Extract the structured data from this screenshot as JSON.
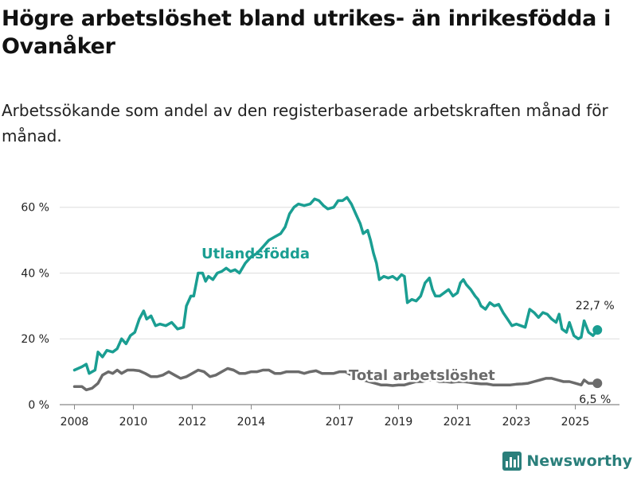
{
  "header": {
    "title": "Högre arbetslöshet bland utrikes- än inrikesfödda i Ovanåker",
    "subtitle": "Arbetssökande som andel av den registerbaserade arbetskraften månad för månad."
  },
  "brand": {
    "name": "Newsworthy",
    "icon": "bar-chart-logo-icon",
    "color": "#2a7f7b"
  },
  "chart_data": {
    "type": "line",
    "title": "Högre arbetslöshet bland utrikes- än inrikesfödda i Ovanåker",
    "xlabel": "",
    "ylabel": "",
    "xlim": [
      2007.5,
      2026.5
    ],
    "ylim": [
      0,
      65
    ],
    "yticks": [
      0,
      20,
      40,
      60
    ],
    "ytick_labels": [
      "0 %",
      "20 %",
      "40 %",
      "60 %"
    ],
    "xticks": [
      2008,
      2010,
      2012,
      2014,
      2017,
      2019,
      2021,
      2023,
      2025
    ],
    "xtick_labels": [
      "2008",
      "2010",
      "2012",
      "2014",
      "2017",
      "2019",
      "2021",
      "2023",
      "2025"
    ],
    "grid": "horizontal",
    "series": [
      {
        "name": "Utlandsfödda",
        "label": "Utlandsfödda",
        "color": "#1a9e92",
        "end_label": "22,7 %",
        "points": [
          [
            2008.0,
            10.5
          ],
          [
            2008.25,
            11.5
          ],
          [
            2008.4,
            12.3
          ],
          [
            2008.5,
            9.5
          ],
          [
            2008.7,
            10.5
          ],
          [
            2008.8,
            16
          ],
          [
            2008.95,
            14.5
          ],
          [
            2009.1,
            16.5
          ],
          [
            2009.3,
            16
          ],
          [
            2009.45,
            17
          ],
          [
            2009.6,
            20
          ],
          [
            2009.75,
            18.5
          ],
          [
            2009.9,
            21
          ],
          [
            2010.05,
            22
          ],
          [
            2010.2,
            26
          ],
          [
            2010.35,
            28.5
          ],
          [
            2010.45,
            26
          ],
          [
            2010.6,
            27
          ],
          [
            2010.75,
            24
          ],
          [
            2010.9,
            24.5
          ],
          [
            2011.1,
            24
          ],
          [
            2011.3,
            25
          ],
          [
            2011.5,
            23
          ],
          [
            2011.7,
            23.5
          ],
          [
            2011.8,
            30
          ],
          [
            2011.95,
            33
          ],
          [
            2012.05,
            33
          ],
          [
            2012.2,
            40
          ],
          [
            2012.35,
            40
          ],
          [
            2012.45,
            37.5
          ],
          [
            2012.55,
            39
          ],
          [
            2012.7,
            38
          ],
          [
            2012.85,
            40
          ],
          [
            2013.0,
            40.5
          ],
          [
            2013.15,
            41.5
          ],
          [
            2013.3,
            40.5
          ],
          [
            2013.45,
            41
          ],
          [
            2013.6,
            40
          ],
          [
            2013.8,
            43
          ],
          [
            2014.0,
            45
          ],
          [
            2014.2,
            46
          ],
          [
            2014.4,
            48
          ],
          [
            2014.6,
            50
          ],
          [
            2014.8,
            51
          ],
          [
            2015.0,
            52
          ],
          [
            2015.15,
            54
          ],
          [
            2015.3,
            58
          ],
          [
            2015.45,
            60
          ],
          [
            2015.6,
            61
          ],
          [
            2015.8,
            60.5
          ],
          [
            2016.0,
            61
          ],
          [
            2016.15,
            62.5
          ],
          [
            2016.3,
            62
          ],
          [
            2016.45,
            60.5
          ],
          [
            2016.6,
            59.5
          ],
          [
            2016.8,
            60
          ],
          [
            2016.95,
            62
          ],
          [
            2017.1,
            62
          ],
          [
            2017.25,
            63
          ],
          [
            2017.4,
            61
          ],
          [
            2017.55,
            58
          ],
          [
            2017.7,
            55
          ],
          [
            2017.8,
            52
          ],
          [
            2017.95,
            53
          ],
          [
            2018.05,
            50
          ],
          [
            2018.15,
            46
          ],
          [
            2018.25,
            43
          ],
          [
            2018.35,
            38
          ],
          [
            2018.5,
            39
          ],
          [
            2018.65,
            38.5
          ],
          [
            2018.8,
            39
          ],
          [
            2018.95,
            38
          ],
          [
            2019.1,
            39.5
          ],
          [
            2019.2,
            39
          ],
          [
            2019.3,
            31
          ],
          [
            2019.45,
            32
          ],
          [
            2019.6,
            31.5
          ],
          [
            2019.75,
            33
          ],
          [
            2019.9,
            37
          ],
          [
            2020.05,
            38.5
          ],
          [
            2020.15,
            35
          ],
          [
            2020.25,
            33
          ],
          [
            2020.4,
            33
          ],
          [
            2020.55,
            34
          ],
          [
            2020.7,
            35
          ],
          [
            2020.85,
            33
          ],
          [
            2021.0,
            34
          ],
          [
            2021.1,
            37
          ],
          [
            2021.2,
            38
          ],
          [
            2021.3,
            36.5
          ],
          [
            2021.45,
            35
          ],
          [
            2021.6,
            33
          ],
          [
            2021.7,
            32
          ],
          [
            2021.8,
            30
          ],
          [
            2021.95,
            29
          ],
          [
            2022.1,
            31
          ],
          [
            2022.25,
            30
          ],
          [
            2022.4,
            30.5
          ],
          [
            2022.55,
            28
          ],
          [
            2022.7,
            26
          ],
          [
            2022.85,
            24
          ],
          [
            2023.0,
            24.5
          ],
          [
            2023.15,
            24
          ],
          [
            2023.3,
            23.5
          ],
          [
            2023.45,
            29
          ],
          [
            2023.6,
            28
          ],
          [
            2023.75,
            26.5
          ],
          [
            2023.9,
            28
          ],
          [
            2024.05,
            27.5
          ],
          [
            2024.2,
            26
          ],
          [
            2024.35,
            25
          ],
          [
            2024.45,
            27.5
          ],
          [
            2024.55,
            23
          ],
          [
            2024.7,
            22
          ],
          [
            2024.8,
            25
          ],
          [
            2024.95,
            21
          ],
          [
            2025.1,
            20
          ],
          [
            2025.2,
            20.5
          ],
          [
            2025.3,
            25.5
          ],
          [
            2025.45,
            22
          ],
          [
            2025.6,
            21
          ],
          [
            2025.75,
            22.7
          ]
        ]
      },
      {
        "name": "Total arbetslöshet",
        "label": "Total arbetslöshet",
        "color": "#6b6b6b",
        "end_label": "6,5 %",
        "points": [
          [
            2008.0,
            5.5
          ],
          [
            2008.25,
            5.5
          ],
          [
            2008.4,
            4.5
          ],
          [
            2008.6,
            5
          ],
          [
            2008.8,
            6.5
          ],
          [
            2008.95,
            9
          ],
          [
            2009.15,
            10
          ],
          [
            2009.3,
            9.5
          ],
          [
            2009.45,
            10.5
          ],
          [
            2009.6,
            9.5
          ],
          [
            2009.8,
            10.5
          ],
          [
            2010.0,
            10.5
          ],
          [
            2010.2,
            10.3
          ],
          [
            2010.4,
            9.5
          ],
          [
            2010.6,
            8.5
          ],
          [
            2010.8,
            8.5
          ],
          [
            2011.0,
            9
          ],
          [
            2011.2,
            10
          ],
          [
            2011.4,
            9
          ],
          [
            2011.6,
            8
          ],
          [
            2011.8,
            8.5
          ],
          [
            2012.0,
            9.5
          ],
          [
            2012.2,
            10.5
          ],
          [
            2012.4,
            10
          ],
          [
            2012.6,
            8.5
          ],
          [
            2012.8,
            9
          ],
          [
            2013.0,
            10
          ],
          [
            2013.2,
            11
          ],
          [
            2013.4,
            10.5
          ],
          [
            2013.6,
            9.5
          ],
          [
            2013.8,
            9.5
          ],
          [
            2014.0,
            10
          ],
          [
            2014.2,
            10
          ],
          [
            2014.4,
            10.5
          ],
          [
            2014.6,
            10.5
          ],
          [
            2014.8,
            9.5
          ],
          [
            2015.0,
            9.5
          ],
          [
            2015.2,
            10
          ],
          [
            2015.4,
            10
          ],
          [
            2015.6,
            10
          ],
          [
            2015.8,
            9.5
          ],
          [
            2016.0,
            10
          ],
          [
            2016.2,
            10.3
          ],
          [
            2016.4,
            9.5
          ],
          [
            2016.6,
            9.5
          ],
          [
            2016.8,
            9.5
          ],
          [
            2017.0,
            10
          ],
          [
            2017.2,
            10
          ],
          [
            2017.4,
            9
          ],
          [
            2017.6,
            8
          ],
          [
            2017.8,
            7.5
          ],
          [
            2018.0,
            7
          ],
          [
            2018.2,
            6.5
          ],
          [
            2018.4,
            6
          ],
          [
            2018.6,
            6
          ],
          [
            2018.8,
            5.8
          ],
          [
            2019.0,
            6
          ],
          [
            2019.2,
            6
          ],
          [
            2019.4,
            6.5
          ],
          [
            2019.6,
            7
          ],
          [
            2019.8,
            7
          ],
          [
            2020.0,
            7.5
          ],
          [
            2020.2,
            7.5
          ],
          [
            2020.4,
            7
          ],
          [
            2020.6,
            7
          ],
          [
            2020.8,
            6.8
          ],
          [
            2021.0,
            7
          ],
          [
            2021.2,
            7
          ],
          [
            2021.4,
            6.8
          ],
          [
            2021.6,
            6.5
          ],
          [
            2021.8,
            6.3
          ],
          [
            2022.0,
            6.3
          ],
          [
            2022.2,
            6
          ],
          [
            2022.4,
            6
          ],
          [
            2022.6,
            6
          ],
          [
            2022.8,
            6
          ],
          [
            2023.0,
            6.2
          ],
          [
            2023.2,
            6.3
          ],
          [
            2023.4,
            6.5
          ],
          [
            2023.6,
            7
          ],
          [
            2023.8,
            7.5
          ],
          [
            2024.0,
            8
          ],
          [
            2024.2,
            8
          ],
          [
            2024.4,
            7.5
          ],
          [
            2024.6,
            7
          ],
          [
            2024.8,
            7
          ],
          [
            2025.0,
            6.5
          ],
          [
            2025.2,
            6
          ],
          [
            2025.3,
            7.5
          ],
          [
            2025.45,
            6.5
          ],
          [
            2025.6,
            6.5
          ],
          [
            2025.75,
            6.5
          ]
        ]
      }
    ]
  }
}
